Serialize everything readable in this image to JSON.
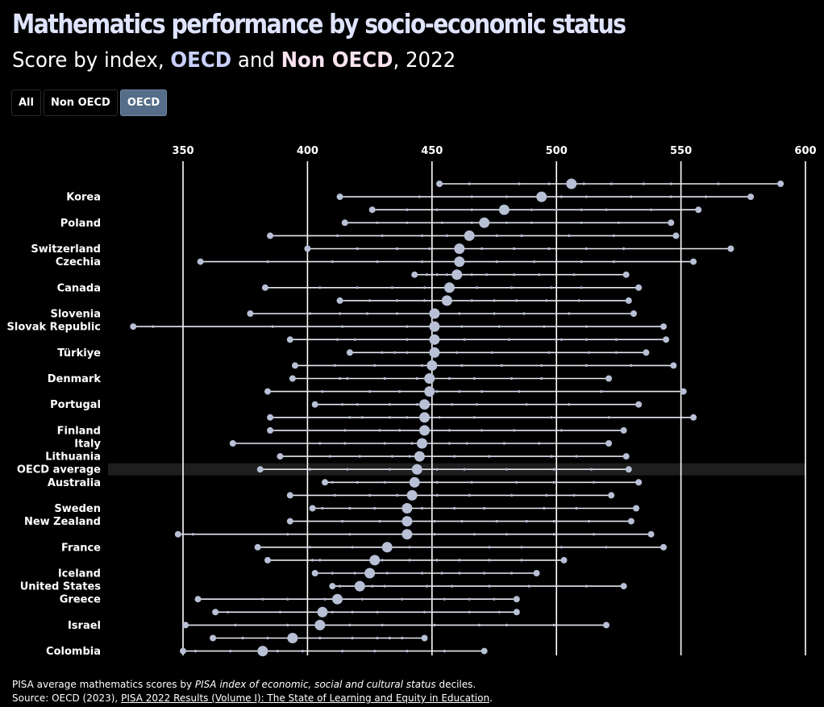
{
  "header": {
    "title": "Mathematics performance by socio-economic status",
    "subtitle_prefix": "Score by index, ",
    "subtitle_oecd": "OECD",
    "subtitle_and": " and ",
    "subtitle_non": "Non OECD",
    "subtitle_suffix": ", 2022"
  },
  "filters": [
    {
      "label": "All",
      "active": false
    },
    {
      "label": "Non OECD",
      "active": false
    },
    {
      "label": "OECD",
      "active": true
    }
  ],
  "footer": {
    "note_prefix": "PISA average mathematics scores by ",
    "note_em": "PISA index of economic, social and cultural status",
    "note_suffix": " deciles.",
    "source_prefix": "Source: OECD (2023), ",
    "source_link": "PISA 2022 Results (Volume I): The State of Learning and Equity in Education",
    "source_suffix": "."
  },
  "colors": {
    "dot": "#b8c0d6",
    "line": "#e6e9f2",
    "grid": "#ffffff",
    "highlight_band": "#1e1e1e"
  },
  "chart_data": {
    "type": "dot-range",
    "xlim": [
      320,
      600
    ],
    "x_ticks": [
      350,
      400,
      450,
      500,
      550,
      600
    ],
    "highlight_row": "OECD average",
    "rows": [
      {
        "label": "",
        "avg": 506,
        "min": 453,
        "max": 590,
        "deciles": [
          465,
          485,
          497,
          511,
          522,
          535,
          546,
          565
        ]
      },
      {
        "label": "Korea",
        "avg": 494,
        "min": 413,
        "max": 578,
        "deciles": [
          445,
          466,
          480,
          502,
          512,
          530,
          546,
          560
        ]
      },
      {
        "label": "",
        "avg": 479,
        "min": 426,
        "max": 557,
        "deciles": [
          440,
          452,
          466,
          490,
          500,
          510,
          520,
          538
        ]
      },
      {
        "label": "Poland",
        "avg": 471,
        "min": 415,
        "max": 546,
        "deciles": [
          428,
          440,
          454,
          466,
          480,
          490,
          510,
          525
        ]
      },
      {
        "label": "",
        "avg": 465,
        "min": 385,
        "max": 548,
        "deciles": [
          412,
          430,
          446,
          456,
          476,
          486,
          505,
          523
        ]
      },
      {
        "label": "Switzerland",
        "avg": 461,
        "min": 400,
        "max": 570,
        "deciles": [
          420,
          436,
          449,
          470,
          483,
          497,
          512,
          527
        ]
      },
      {
        "label": "Czechia",
        "avg": 461,
        "min": 357,
        "max": 555,
        "deciles": [
          384,
          410,
          428,
          446,
          476,
          491,
          510,
          523
        ]
      },
      {
        "label": "",
        "avg": 460,
        "min": 443,
        "max": 528,
        "deciles": [
          448,
          452,
          456,
          466,
          472,
          483,
          493,
          507
        ]
      },
      {
        "label": "Canada",
        "avg": 457,
        "min": 383,
        "max": 533,
        "deciles": [
          405,
          420,
          434,
          447,
          468,
          482,
          498,
          510
        ]
      },
      {
        "label": "",
        "avg": 456,
        "min": 413,
        "max": 529,
        "deciles": [
          425,
          436,
          447,
          466,
          475,
          484,
          496,
          509
        ]
      },
      {
        "label": "Slovenia",
        "avg": 451,
        "min": 377,
        "max": 531,
        "deciles": [
          401,
          413,
          424,
          436,
          461,
          475,
          487,
          505
        ]
      },
      {
        "label": "Slovak Republic",
        "avg": 451,
        "min": 330,
        "max": 543,
        "deciles": [
          338,
          386,
          414,
          440,
          462,
          477,
          495,
          512
        ]
      },
      {
        "label": "",
        "avg": 451,
        "min": 393,
        "max": 544,
        "deciles": [
          412,
          419,
          440,
          463,
          481,
          502,
          512,
          524
        ]
      },
      {
        "label": "Türkiye",
        "avg": 451,
        "min": 417,
        "max": 536,
        "deciles": [
          430,
          435,
          440,
          460,
          474,
          497,
          513,
          524
        ]
      },
      {
        "label": "",
        "avg": 450,
        "min": 395,
        "max": 547,
        "deciles": [
          411,
          427,
          446,
          462,
          478,
          494,
          512,
          530
        ]
      },
      {
        "label": "Denmark",
        "avg": 449,
        "min": 394,
        "max": 521,
        "deciles": [
          413,
          416,
          431,
          444,
          457,
          467,
          482,
          494
        ]
      },
      {
        "label": "",
        "avg": 449,
        "min": 384,
        "max": 551,
        "deciles": [
          406,
          425,
          437,
          452,
          461,
          470,
          485,
          518
        ]
      },
      {
        "label": "Portugal",
        "avg": 447,
        "min": 403,
        "max": 533,
        "deciles": [
          414,
          420,
          433,
          444,
          458,
          468,
          488,
          505
        ]
      },
      {
        "label": "",
        "avg": 447,
        "min": 385,
        "max": 555,
        "deciles": [
          417,
          422,
          433,
          440,
          453,
          467,
          498,
          521
        ]
      },
      {
        "label": "Finland",
        "avg": 447,
        "min": 385,
        "max": 527,
        "deciles": [
          400,
          415,
          429,
          437,
          457,
          470,
          483,
          502
        ]
      },
      {
        "label": "Italy",
        "avg": 446,
        "min": 370,
        "max": 521,
        "deciles": [
          405,
          415,
          431,
          442,
          457,
          464,
          479,
          493
        ]
      },
      {
        "label": "Lithuania",
        "avg": 445,
        "min": 389,
        "max": 528,
        "deciles": [
          409,
          421,
          434,
          441,
          459,
          473,
          498,
          508
        ]
      },
      {
        "label": "OECD average",
        "avg": 444,
        "min": 381,
        "max": 529,
        "deciles": [
          401,
          416,
          433,
          452,
          463,
          480,
          499,
          514
        ]
      },
      {
        "label": "Australia",
        "avg": 443,
        "min": 407,
        "max": 533,
        "deciles": [
          410,
          420,
          431,
          452,
          466,
          484,
          499,
          515
        ]
      },
      {
        "label": "",
        "avg": 442,
        "min": 393,
        "max": 522,
        "deciles": [
          411,
          425,
          436,
          452,
          465,
          482,
          496,
          507
        ]
      },
      {
        "label": "Sweden",
        "avg": 440,
        "min": 402,
        "max": 532,
        "deciles": [
          406,
          417,
          427,
          446,
          459,
          471,
          495,
          508
        ]
      },
      {
        "label": "New Zealand",
        "avg": 440,
        "min": 393,
        "max": 530,
        "deciles": [
          414,
          429,
          451,
          462,
          476,
          488,
          499,
          513
        ]
      },
      {
        "label": "",
        "avg": 440,
        "min": 348,
        "max": 538,
        "deciles": [
          354,
          392,
          417,
          451,
          467,
          480,
          499,
          515
        ]
      },
      {
        "label": "France",
        "avg": 432,
        "min": 380,
        "max": 543,
        "deciles": [
          401,
          418,
          441,
          450,
          473,
          486,
          502,
          520
        ]
      },
      {
        "label": "",
        "avg": 427,
        "min": 384,
        "max": 503,
        "deciles": [
          402,
          405,
          430,
          441,
          452,
          461,
          473,
          486
        ]
      },
      {
        "label": "Iceland",
        "avg": 425,
        "min": 403,
        "max": 492,
        "deciles": [
          410,
          419,
          432,
          446,
          454,
          461,
          471,
          482
        ]
      },
      {
        "label": "United States",
        "avg": 421,
        "min": 410,
        "max": 527,
        "deciles": [
          413,
          426,
          431,
          448,
          458,
          473,
          489,
          512
        ]
      },
      {
        "label": "Greece",
        "avg": 412,
        "min": 356,
        "max": 484,
        "deciles": [
          382,
          392,
          407,
          422,
          438,
          455,
          465,
          475
        ]
      },
      {
        "label": "",
        "avg": 406,
        "min": 363,
        "max": 484,
        "deciles": [
          368,
          389,
          410,
          418,
          428,
          447,
          465,
          477
        ]
      },
      {
        "label": "Israel",
        "avg": 405,
        "min": 351,
        "max": 520,
        "deciles": [
          371,
          392,
          417,
          430,
          451,
          469,
          480,
          499
        ]
      },
      {
        "label": "",
        "avg": 394,
        "min": 362,
        "max": 447,
        "deciles": [
          374,
          384,
          393,
          405,
          418,
          428,
          433,
          438
        ]
      },
      {
        "label": "Colombia",
        "avg": 382,
        "min": 350,
        "max": 471,
        "deciles": [
          355,
          369,
          388,
          398,
          414,
          427,
          440,
          455
        ]
      }
    ]
  }
}
